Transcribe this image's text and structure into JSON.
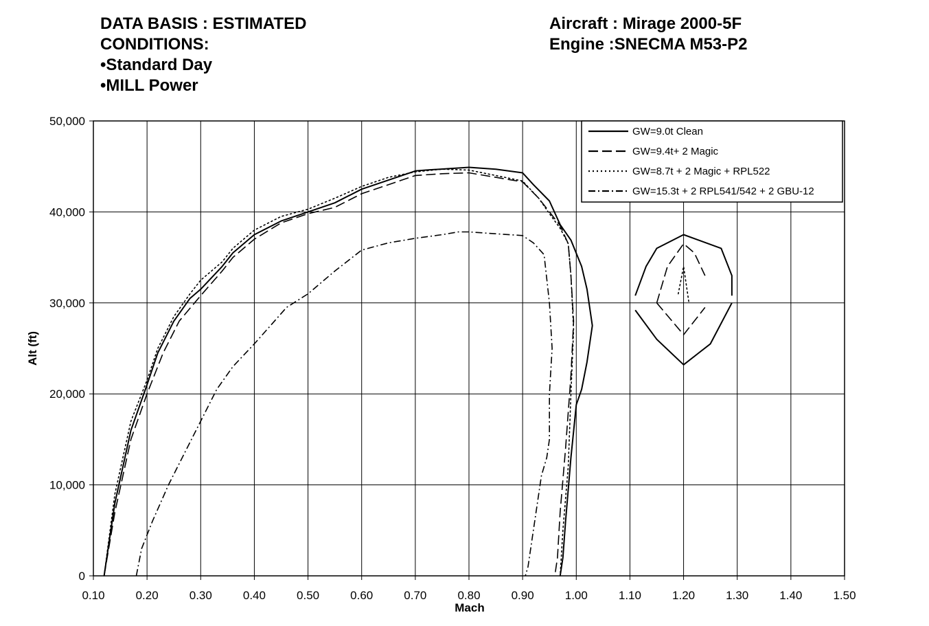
{
  "header": {
    "left_lines": [
      "DATA BASIS : ESTIMATED",
      "CONDITIONS:",
      "•Standard Day",
      "•MILL Power"
    ],
    "right_lines": [
      "Aircraft : Mirage 2000-5F",
      "Engine :SNECMA M53-P2"
    ]
  },
  "chart_data": {
    "type": "line",
    "title": "",
    "xlabel": "Mach",
    "ylabel": "Alt (ft)",
    "xlim": [
      0.1,
      1.5
    ],
    "ylim": [
      0,
      50000
    ],
    "x_ticks": [
      "0.10",
      "0.20",
      "0.30",
      "0.40",
      "0.50",
      "0.60",
      "0.70",
      "0.80",
      "0.90",
      "1.00",
      "1.10",
      "1.20",
      "1.30",
      "1.40",
      "1.50"
    ],
    "y_ticks": [
      "0",
      "10,000",
      "20,000",
      "30,000",
      "40,000",
      "50,000"
    ],
    "grid": true,
    "legend_position": "top-right",
    "series": [
      {
        "name": "GW=9.0t Clean",
        "style": "solid",
        "color": "#000000",
        "segments": [
          [
            [
              0.12,
              0
            ],
            [
              0.14,
              8000
            ],
            [
              0.17,
              16000
            ],
            [
              0.2,
              21000
            ],
            [
              0.22,
              24500
            ],
            [
              0.25,
              28000
            ],
            [
              0.28,
              30500
            ],
            [
              0.3,
              31500
            ],
            [
              0.34,
              34000
            ],
            [
              0.36,
              35500
            ],
            [
              0.4,
              37500
            ],
            [
              0.45,
              39000
            ],
            [
              0.5,
              40000
            ],
            [
              0.55,
              41000
            ],
            [
              0.6,
              42500
            ],
            [
              0.65,
              43500
            ],
            [
              0.7,
              44500
            ],
            [
              0.72,
              44600
            ],
            [
              0.8,
              44900
            ],
            [
              0.85,
              44700
            ],
            [
              0.9,
              44300
            ],
            [
              0.92,
              43000
            ],
            [
              0.95,
              41200
            ],
            [
              0.97,
              38600
            ],
            [
              0.99,
              36900
            ],
            [
              1.01,
              34000
            ],
            [
              1.02,
              31500
            ],
            [
              1.03,
              27500
            ],
            [
              1.02,
              23500
            ],
            [
              1.01,
              20500
            ],
            [
              1.0,
              18800
            ],
            [
              0.99,
              13000
            ],
            [
              0.98,
              6000
            ],
            [
              0.975,
              2000
            ],
            [
              0.97,
              0
            ]
          ],
          [
            [
              1.11,
              30800
            ],
            [
              1.13,
              34000
            ],
            [
              1.15,
              36000
            ],
            [
              1.2,
              37500
            ],
            [
              1.27,
              36000
            ],
            [
              1.29,
              33000
            ],
            [
              1.29,
              30800
            ]
          ],
          [
            [
              1.11,
              29200
            ],
            [
              1.15,
              26000
            ],
            [
              1.2,
              23200
            ],
            [
              1.25,
              25500
            ],
            [
              1.29,
              30000
            ]
          ]
        ]
      },
      {
        "name": "GW=9.4t+ 2 Magic",
        "style": "dashed",
        "color": "#000000",
        "segments": [
          [
            [
              0.12,
              0
            ],
            [
              0.14,
              7000
            ],
            [
              0.17,
              15000
            ],
            [
              0.2,
              20000
            ],
            [
              0.23,
              24500
            ],
            [
              0.26,
              28000
            ],
            [
              0.3,
              30800
            ],
            [
              0.34,
              33500
            ],
            [
              0.36,
              35000
            ],
            [
              0.4,
              37000
            ],
            [
              0.45,
              38800
            ],
            [
              0.5,
              39800
            ],
            [
              0.55,
              40500
            ],
            [
              0.6,
              42000
            ],
            [
              0.65,
              43000
            ],
            [
              0.7,
              44000
            ],
            [
              0.75,
              44200
            ],
            [
              0.8,
              44300
            ],
            [
              0.85,
              43800
            ],
            [
              0.9,
              43300
            ],
            [
              0.93,
              41500
            ],
            [
              0.95,
              40000
            ],
            [
              0.97,
              38500
            ],
            [
              0.985,
              36500
            ],
            [
              0.99,
              33000
            ],
            [
              0.995,
              28000
            ],
            [
              0.99,
              22000
            ],
            [
              0.98,
              14000
            ],
            [
              0.97,
              7000
            ],
            [
              0.965,
              2000
            ],
            [
              0.96,
              0
            ]
          ],
          [
            [
              1.15,
              30000
            ],
            [
              1.17,
              34000
            ],
            [
              1.2,
              36500
            ],
            [
              1.22,
              35500
            ],
            [
              1.24,
              33000
            ]
          ],
          [
            [
              1.15,
              30000
            ],
            [
              1.2,
              26500
            ],
            [
              1.24,
              29500
            ]
          ]
        ]
      },
      {
        "name": "GW=8.7t + 2 Magic + RPL522",
        "style": "dotted",
        "color": "#000000",
        "segments": [
          [
            [
              0.12,
              0
            ],
            [
              0.14,
              9000
            ],
            [
              0.17,
              17000
            ],
            [
              0.2,
              21500
            ],
            [
              0.22,
              25000
            ],
            [
              0.25,
              28500
            ],
            [
              0.28,
              31000
            ],
            [
              0.3,
              32500
            ],
            [
              0.34,
              34500
            ],
            [
              0.36,
              36000
            ],
            [
              0.4,
              38000
            ],
            [
              0.45,
              39500
            ],
            [
              0.5,
              40300
            ],
            [
              0.55,
              41500
            ],
            [
              0.6,
              42800
            ],
            [
              0.65,
              43800
            ],
            [
              0.7,
              44400
            ],
            [
              0.75,
              44700
            ],
            [
              0.8,
              44600
            ],
            [
              0.85,
              44000
            ],
            [
              0.9,
              43400
            ],
            [
              0.93,
              41500
            ],
            [
              0.95,
              39800
            ],
            [
              0.97,
              38200
            ],
            [
              0.985,
              36500
            ],
            [
              0.99,
              33000
            ],
            [
              0.995,
              27000
            ],
            [
              0.99,
              20000
            ],
            [
              0.985,
              12000
            ],
            [
              0.975,
              5000
            ],
            [
              0.97,
              0
            ]
          ],
          [
            [
              1.19,
              31000
            ],
            [
              1.2,
              34000
            ],
            [
              1.21,
              30000
            ]
          ]
        ]
      },
      {
        "name": "GW=15.3t + 2 RPL541/542 + 2 GBU-12",
        "style": "dashdot",
        "color": "#000000",
        "segments": [
          [
            [
              0.18,
              0
            ],
            [
              0.19,
              3000
            ],
            [
              0.21,
              6000
            ],
            [
              0.24,
              10000
            ],
            [
              0.27,
              13500
            ],
            [
              0.3,
              17000
            ],
            [
              0.33,
              20500
            ],
            [
              0.36,
              23000
            ],
            [
              0.4,
              25500
            ],
            [
              0.43,
              27500
            ],
            [
              0.46,
              29500
            ],
            [
              0.5,
              31000
            ],
            [
              0.55,
              33500
            ],
            [
              0.6,
              35800
            ],
            [
              0.65,
              36600
            ],
            [
              0.7,
              37100
            ],
            [
              0.75,
              37500
            ],
            [
              0.78,
              37800
            ],
            [
              0.8,
              37800
            ],
            [
              0.85,
              37600
            ],
            [
              0.9,
              37400
            ],
            [
              0.92,
              36600
            ],
            [
              0.94,
              35300
            ],
            [
              0.95,
              30000
            ],
            [
              0.955,
              25000
            ],
            [
              0.95,
              20000
            ],
            [
              0.95,
              15000
            ],
            [
              0.945,
              13000
            ],
            [
              0.935,
              11000
            ],
            [
              0.92,
              5000
            ],
            [
              0.91,
              1000
            ],
            [
              0.905,
              0
            ]
          ]
        ]
      }
    ]
  }
}
